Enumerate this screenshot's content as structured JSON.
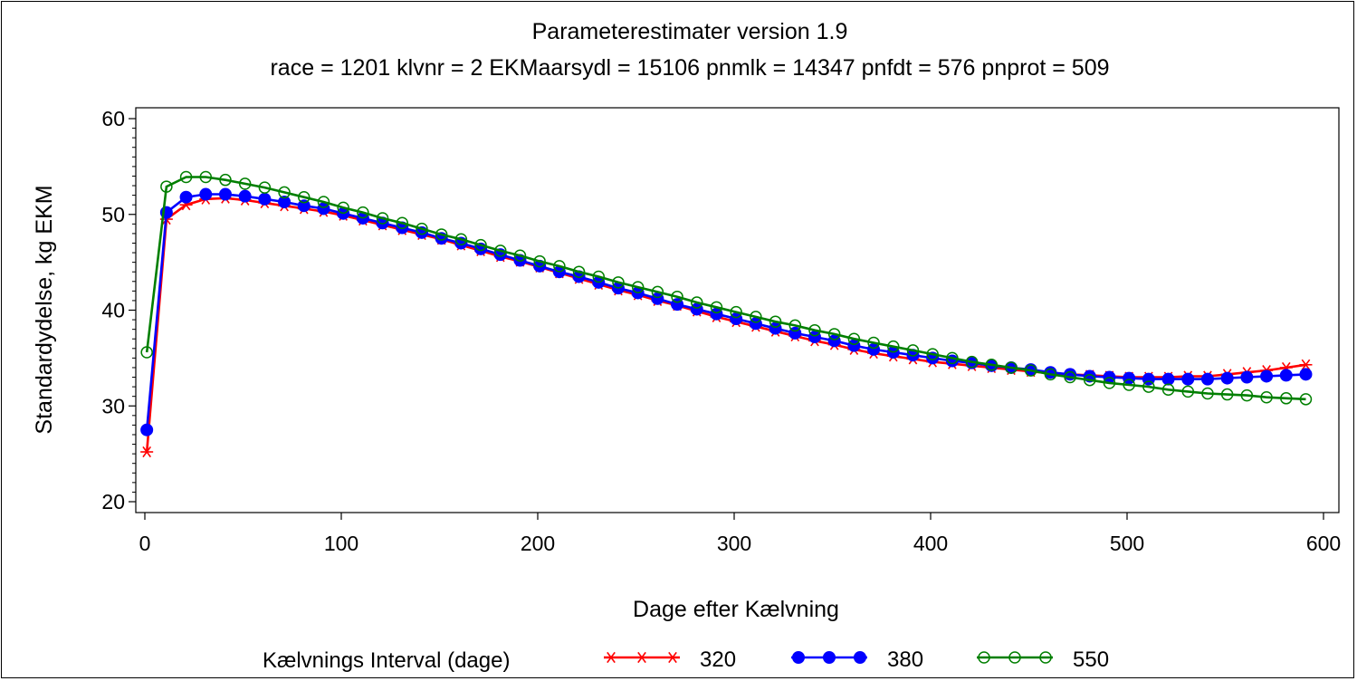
{
  "chart_data": {
    "type": "line",
    "title": "Parameterestimater version 1.9",
    "subtitle": "race = 1201  klvnr = 2  EKMaarsydl = 15106  pnmlk = 14347  pnfdt = 576  pnprot = 509",
    "xlabel": "Dage efter Kælvning",
    "ylabel": "Standardydelse,  kg  EKM",
    "xlim": [
      0,
      600
    ],
    "ylim": [
      20,
      60
    ],
    "xticks": [
      0,
      100,
      200,
      300,
      400,
      500,
      600
    ],
    "yticks": [
      20,
      30,
      40,
      50,
      60
    ],
    "grid": false,
    "legend": {
      "title": "Kælvnings  Interval  (dage)",
      "placement": "bottom"
    },
    "x": [
      1,
      11,
      21,
      31,
      41,
      51,
      61,
      71,
      81,
      91,
      101,
      111,
      121,
      131,
      141,
      151,
      161,
      171,
      181,
      191,
      201,
      211,
      221,
      231,
      241,
      251,
      261,
      271,
      281,
      291,
      301,
      311,
      321,
      331,
      341,
      351,
      361,
      371,
      381,
      391,
      401,
      411,
      421,
      431,
      441,
      451,
      461,
      471,
      481,
      491,
      501,
      511,
      521,
      531,
      541,
      551,
      561,
      571,
      581,
      591
    ],
    "series": [
      {
        "name": "320",
        "color": "#ff0000",
        "marker": "star",
        "values": [
          25.2,
          49.5,
          51.0,
          51.6,
          51.7,
          51.5,
          51.2,
          50.9,
          50.6,
          50.3,
          49.9,
          49.4,
          48.9,
          48.4,
          47.9,
          47.4,
          46.8,
          46.2,
          45.6,
          45.1,
          44.5,
          43.9,
          43.3,
          42.7,
          42.1,
          41.6,
          41.0,
          40.5,
          39.9,
          39.3,
          38.8,
          38.3,
          37.8,
          37.3,
          36.8,
          36.4,
          35.9,
          35.5,
          35.2,
          34.9,
          34.6,
          34.4,
          34.2,
          34.0,
          33.8,
          33.6,
          33.4,
          33.3,
          33.2,
          33.1,
          33.0,
          33.0,
          33.0,
          33.1,
          33.1,
          33.3,
          33.5,
          33.7,
          34.0,
          34.3
        ]
      },
      {
        "name": "380",
        "color": "#0000ff",
        "marker": "filled-circle",
        "values": [
          27.5,
          50.2,
          51.8,
          52.1,
          52.1,
          51.9,
          51.6,
          51.3,
          50.9,
          50.6,
          50.1,
          49.6,
          49.1,
          48.6,
          48.1,
          47.5,
          47.0,
          46.4,
          45.8,
          45.2,
          44.6,
          44.0,
          43.5,
          42.9,
          42.3,
          41.8,
          41.2,
          40.6,
          40.1,
          39.6,
          39.1,
          38.6,
          38.1,
          37.6,
          37.2,
          36.8,
          36.3,
          35.9,
          35.6,
          35.3,
          35.0,
          34.7,
          34.5,
          34.2,
          34.0,
          33.8,
          33.5,
          33.3,
          33.1,
          33.0,
          32.9,
          32.8,
          32.8,
          32.8,
          32.8,
          32.9,
          33.0,
          33.1,
          33.2,
          33.3
        ]
      },
      {
        "name": "550",
        "color": "#007f00",
        "marker": "open-circle",
        "values": [
          35.6,
          52.9,
          53.9,
          53.9,
          53.6,
          53.2,
          52.8,
          52.3,
          51.8,
          51.3,
          50.7,
          50.2,
          49.6,
          49.1,
          48.5,
          47.9,
          47.4,
          46.8,
          46.2,
          45.7,
          45.1,
          44.6,
          44.0,
          43.5,
          42.9,
          42.4,
          41.9,
          41.4,
          40.8,
          40.3,
          39.8,
          39.3,
          38.8,
          38.4,
          37.9,
          37.5,
          37.0,
          36.6,
          36.2,
          35.8,
          35.4,
          35.0,
          34.6,
          34.3,
          34.0,
          33.7,
          33.3,
          33.0,
          32.7,
          32.4,
          32.2,
          32.0,
          31.7,
          31.5,
          31.3,
          31.2,
          31.1,
          30.9,
          30.8,
          30.7
        ]
      }
    ]
  }
}
